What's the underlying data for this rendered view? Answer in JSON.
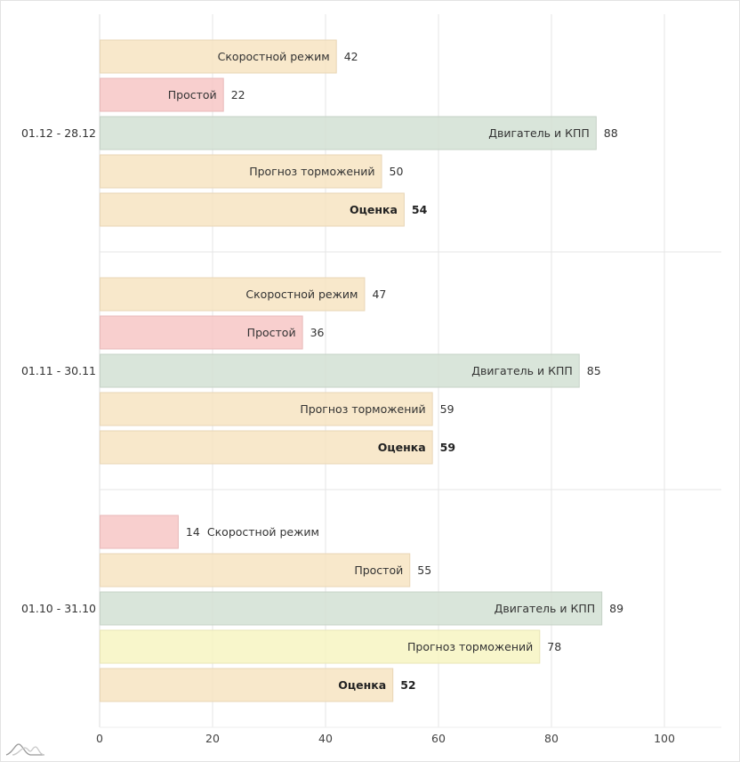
{
  "chart_data": {
    "type": "bar",
    "orientation": "horizontal",
    "title": "",
    "xlabel": "",
    "ylabel": "",
    "xlim": [
      0,
      110
    ],
    "x_ticks": [
      "0",
      "20",
      "40",
      "60",
      "80",
      "100"
    ],
    "grid": true,
    "legend": "none",
    "groups": [
      {
        "label": "01.12 - 28.12",
        "bars": [
          {
            "name": "Скоростной режим",
            "value": 42,
            "color": "#ffebc8",
            "bold": false
          },
          {
            "name": "Простой",
            "value": 22,
            "color": "#ffcccb",
            "bold": false
          },
          {
            "name": "Двигатель и КПП",
            "value": 88,
            "color": "#d9e7da",
            "bold": false
          },
          {
            "name": "Прогноз торможений",
            "value": 50,
            "color": "#ffebc8",
            "bold": false
          },
          {
            "name": "Оценка",
            "value": 54,
            "color": "#ffebc8",
            "bold": true
          }
        ]
      },
      {
        "label": "01.11 - 30.11",
        "bars": [
          {
            "name": "Скоростной режим",
            "value": 47,
            "color": "#ffebc8",
            "bold": false
          },
          {
            "name": "Простой",
            "value": 36,
            "color": "#ffcccb",
            "bold": false
          },
          {
            "name": "Двигатель и КПП",
            "value": 85,
            "color": "#d9e7da",
            "bold": false
          },
          {
            "name": "Прогноз торможений",
            "value": 59,
            "color": "#ffebc8",
            "bold": false
          },
          {
            "name": "Оценка",
            "value": 59,
            "color": "#ffebc8",
            "bold": true
          }
        ]
      },
      {
        "label": "01.10 - 31.10",
        "bars": [
          {
            "name": "Скоростной режим",
            "value": 14,
            "color": "#ffcccb",
            "bold": false
          },
          {
            "name": "Простой",
            "value": 55,
            "color": "#ffebc8",
            "bold": false
          },
          {
            "name": "Двигатель и КПП",
            "value": 89,
            "color": "#d9e7da",
            "bold": false
          },
          {
            "name": "Прогноз торможений",
            "value": 78,
            "color": "#fffcc8",
            "bold": false
          },
          {
            "name": "Оценка",
            "value": 52,
            "color": "#ffebc8",
            "bold": true
          }
        ]
      }
    ]
  },
  "logo": {
    "icon": "chart-logo-icon"
  }
}
